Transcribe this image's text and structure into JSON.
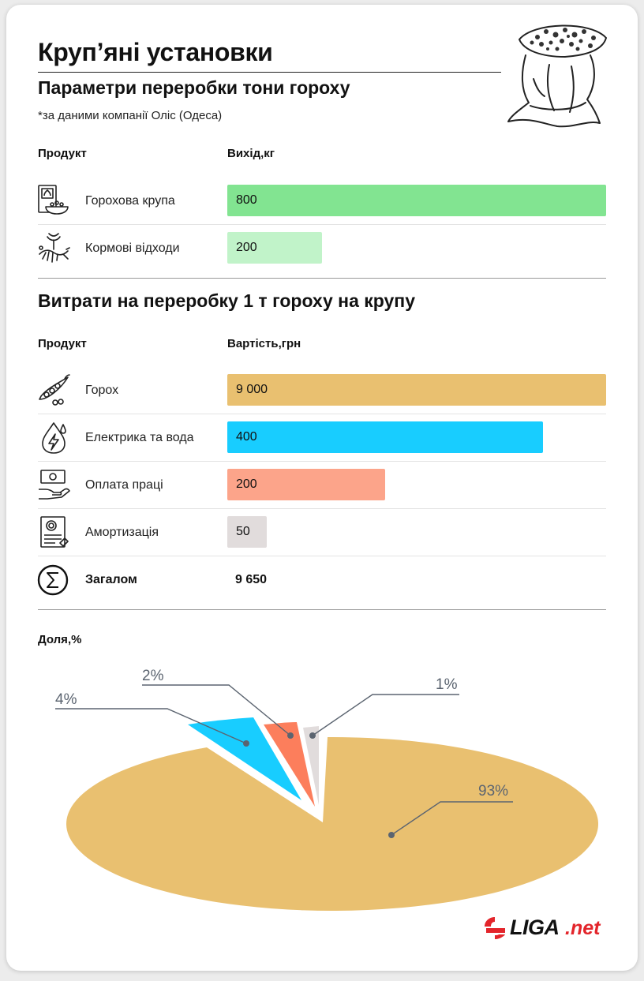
{
  "title": "Круп’яні установки",
  "subtitle": "Параметри переробки тони гороху",
  "source": "*за даними компанії Оліс (Одеса)",
  "output_table": {
    "col_product": "Продукт",
    "col_value": "Вихід,кг",
    "max": 800,
    "rows": [
      {
        "label": "Горохова крупа",
        "value": 800,
        "display": "800",
        "color": "#82e491",
        "icon": "cereal-bowl-icon"
      },
      {
        "label": "Кормові відходи",
        "value": 200,
        "display": "200",
        "color": "#c1f3c9",
        "icon": "fish-bone-icon"
      }
    ]
  },
  "cost_section_title": "Витрати на переробку 1 т гороху на крупу",
  "cost_table": {
    "col_product": "Продукт",
    "col_value": "Вартість,грн",
    "rows": [
      {
        "label": "Горох",
        "value": 9000,
        "display": "9 000",
        "color": "#e9c070",
        "icon": "pea-pod-icon"
      },
      {
        "label": "Електрика та вода",
        "value": 400,
        "display": "400",
        "color": "#18cdff",
        "icon": "water-electricity-icon"
      },
      {
        "label": "Оплата праці",
        "value": 200,
        "display": "200",
        "color": "#fca48a",
        "icon": "salary-hand-icon"
      },
      {
        "label": "Амортизація",
        "value": 50,
        "display": "50",
        "color": "#e1dcdc",
        "icon": "document-icon"
      }
    ],
    "total_label": "Загалом",
    "total_value": "9 650"
  },
  "share_title": "Доля,%",
  "chart_data": [
    {
      "type": "bar",
      "categories": [
        "Горохова крупа",
        "Кормові відходи"
      ],
      "values": [
        800,
        200
      ]
    },
    {
      "type": "bar",
      "categories": [
        "Горох",
        "Електрика та вода",
        "Оплата праці",
        "Амортизація"
      ],
      "values": [
        9000,
        400,
        200,
        50
      ]
    },
    {
      "type": "pie",
      "style": "3d-exploded",
      "slices": [
        {
          "label": "93%",
          "value": 93,
          "color": "#e9c070"
        },
        {
          "label": "4%",
          "value": 4,
          "color": "#18cdff"
        },
        {
          "label": "2%",
          "value": 2,
          "color": "#fc7e5c"
        },
        {
          "label": "1%",
          "value": 1,
          "color": "#e1dcdc"
        }
      ]
    }
  ],
  "brand": {
    "name": "LIGA",
    "suffix": ".net",
    "color": "#e3252b"
  }
}
